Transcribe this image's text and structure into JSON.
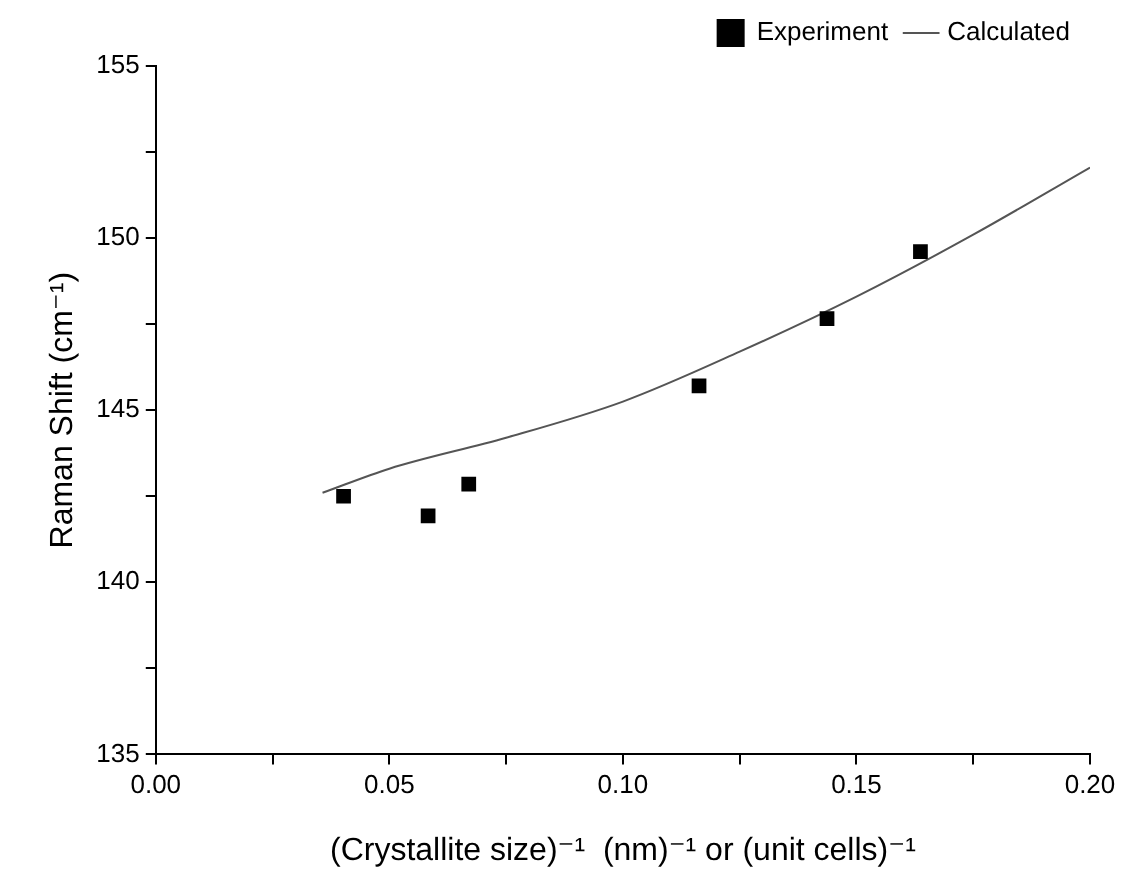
{
  "chart_data": {
    "type": "scatter",
    "xlabel": "(Crystallite size)⁻¹  (nm)⁻¹ or (unit cells)⁻¹",
    "ylabel": "Raman Shift (cm⁻¹)",
    "series": [
      {
        "name": "Experiment",
        "color": "#000000",
        "marker": "square",
        "x": [
          0.0402,
          0.0583,
          0.067,
          0.1163,
          0.1437,
          0.1637
        ],
        "values": [
          142.5,
          141.93,
          142.85,
          145.71,
          147.66,
          149.61
        ]
      },
      {
        "name": "Calculated",
        "type": "line",
        "color": "#555555",
        "marker": "none",
        "line_style": "solid",
        "x": [
          0.0357,
          0.05,
          0.075,
          0.1,
          0.125,
          0.15,
          0.175,
          0.2
        ],
        "values": [
          142.6,
          143.3,
          144.2,
          145.25,
          146.7,
          148.3,
          150.1,
          152.05
        ]
      }
    ],
    "xlim": [
      0,
      0.2
    ],
    "xticks": [
      {
        "value": 0,
        "label": "0.00"
      },
      {
        "value": 0.025,
        "label": null
      },
      {
        "value": 0.05,
        "label": "0.05"
      },
      {
        "value": 0.075,
        "label": null
      },
      {
        "value": 0.1,
        "label": "0.10"
      },
      {
        "value": 0.125,
        "label": null
      },
      {
        "value": 0.15,
        "label": "0.15"
      },
      {
        "value": 0.175,
        "label": null
      },
      {
        "value": 0.2,
        "label": "0.20"
      }
    ],
    "ylim": [
      135,
      155
    ],
    "yticks": [
      135,
      {
        "value": 137.5,
        "label": null
      },
      140,
      {
        "value": 142.5,
        "label": null
      },
      145,
      {
        "value": 147.5,
        "label": null
      },
      150,
      {
        "value": 152.5,
        "label": null
      },
      155
    ],
    "grid": false,
    "legend": "top right"
  }
}
